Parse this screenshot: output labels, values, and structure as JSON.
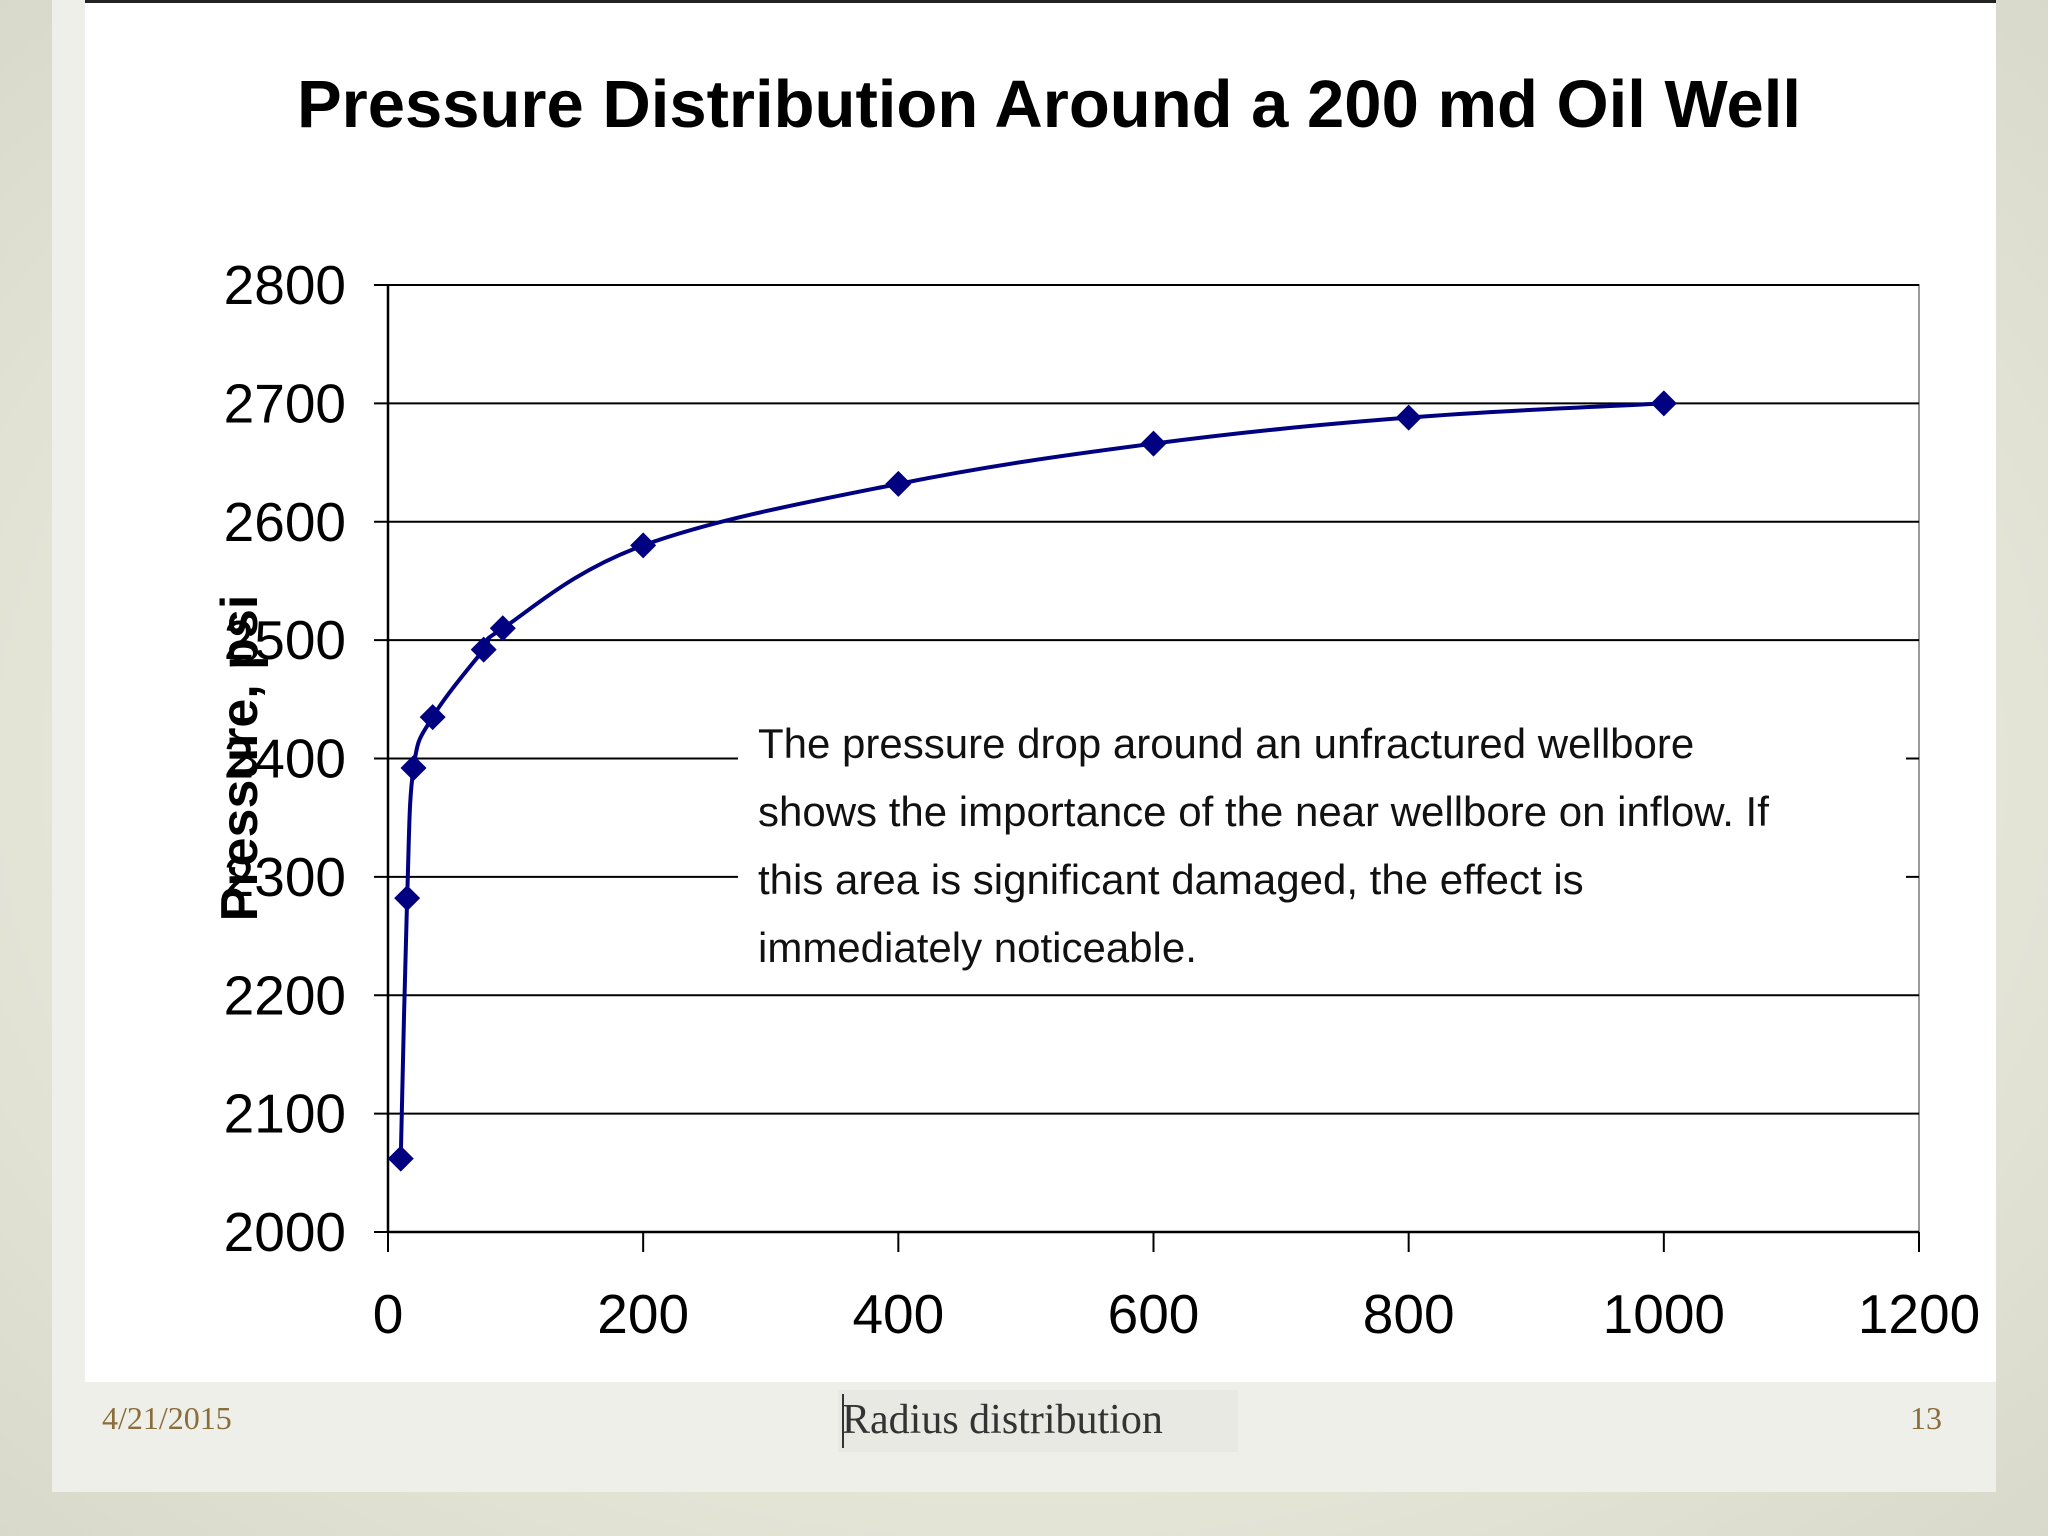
{
  "slide": {
    "date": "4/21/2015",
    "caption": "Radius distribution",
    "page_number": "13"
  },
  "colors": {
    "series": "#000080",
    "grid": "#000000",
    "footer": "#8a6d3b"
  },
  "chart_data": {
    "type": "line",
    "title": "Pressure Distribution Around a 200 md Oil Well",
    "xlabel": "",
    "ylabel": "Pressure, psi",
    "xlim": [
      0,
      1200
    ],
    "ylim": [
      2000,
      2800
    ],
    "x_ticks": [
      "0",
      "200",
      "400",
      "600",
      "800",
      "1000",
      "1200"
    ],
    "y_ticks": [
      "2000",
      "2100",
      "2200",
      "2300",
      "2400",
      "2500",
      "2600",
      "2700",
      "2800"
    ],
    "grid": true,
    "series": [
      {
        "name": "Pressure",
        "marker": "diamond",
        "x": [
          10,
          15,
          20,
          35,
          75,
          90,
          200,
          400,
          600,
          800,
          1000
        ],
        "y": [
          2062,
          2282,
          2392,
          2435,
          2492,
          2510,
          2580,
          2632,
          2666,
          2688,
          2700
        ]
      }
    ],
    "annotation": [
      "The pressure drop around an unfractured wellbore",
      "shows the importance of the near wellbore on inflow. If",
      "this area is significant damaged, the effect is",
      "immediately noticeable."
    ]
  }
}
